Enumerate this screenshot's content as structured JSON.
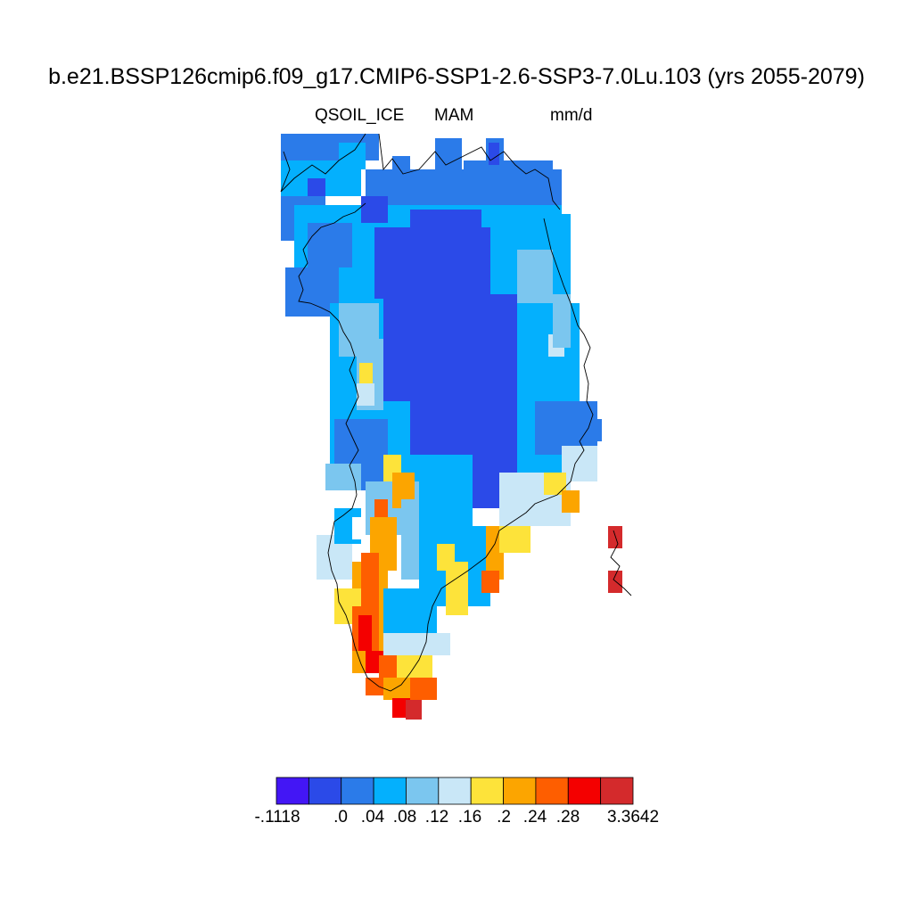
{
  "title": "b.e21.BSSP126cmip6.f09_g17.CMIP6-SSP1-2.6-SSP3-7.0Lu.103 (yrs 2055-2079)",
  "subtitle_left": "QSOIL_ICE",
  "subtitle_center": "MAM",
  "subtitle_right": "mm/d",
  "colorbar": {
    "colors": [
      "#4316f5",
      "#2b4ae8",
      "#2b7be9",
      "#04b0fd",
      "#7bc6ef",
      "#c9e7f7",
      "#fde33a",
      "#fca500",
      "#fe5e00",
      "#f40000",
      "#d42a2c"
    ],
    "labels": [
      "-.1118",
      ".0",
      ".04",
      ".08",
      ".12",
      ".16",
      ".2",
      ".24",
      ".28",
      "3.3642"
    ]
  }
}
